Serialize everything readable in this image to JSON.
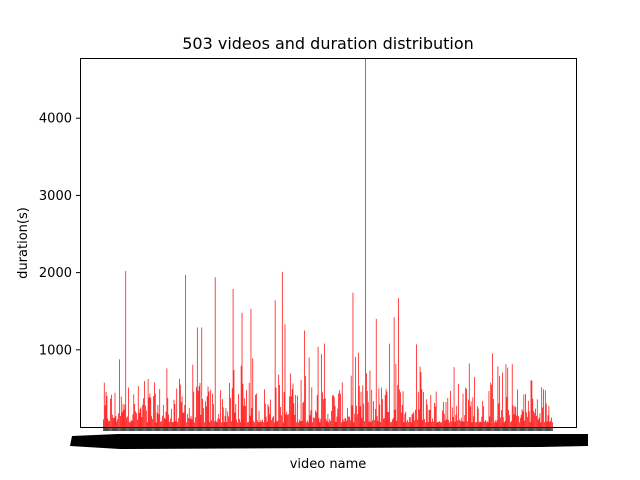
{
  "chart_data": {
    "type": "bar",
    "title": "503 videos and duration distribution",
    "xlabel": "video name",
    "ylabel": "duration(s)",
    "bar_count": 503,
    "ylim": [
      0,
      4780
    ],
    "yticks": [
      1000,
      2000,
      3000,
      4000
    ],
    "bar_color": "#ff0000",
    "grid": false,
    "legend": "none",
    "tick_labels_note": "x tick labels are overlapping video names and not legible",
    "notable_bars": [
      {
        "index": 25,
        "value": 2020
      },
      {
        "index": 92,
        "value": 1970
      },
      {
        "index": 105,
        "value": 1290
      },
      {
        "index": 110,
        "value": 1290
      },
      {
        "index": 125,
        "value": 1940
      },
      {
        "index": 145,
        "value": 1790
      },
      {
        "index": 155,
        "value": 1480
      },
      {
        "index": 165,
        "value": 1530
      },
      {
        "index": 192,
        "value": 1640
      },
      {
        "index": 200,
        "value": 2010
      },
      {
        "index": 203,
        "value": 1330
      },
      {
        "index": 225,
        "value": 1250
      },
      {
        "index": 240,
        "value": 1040
      },
      {
        "index": 247,
        "value": 1080
      },
      {
        "index": 279,
        "value": 1740
      },
      {
        "index": 293,
        "value": 4780
      },
      {
        "index": 305,
        "value": 1400
      },
      {
        "index": 320,
        "value": 1080
      },
      {
        "index": 325,
        "value": 1420
      },
      {
        "index": 330,
        "value": 1670
      },
      {
        "index": 350,
        "value": 1070
      },
      {
        "index": 355,
        "value": 710
      }
    ]
  }
}
